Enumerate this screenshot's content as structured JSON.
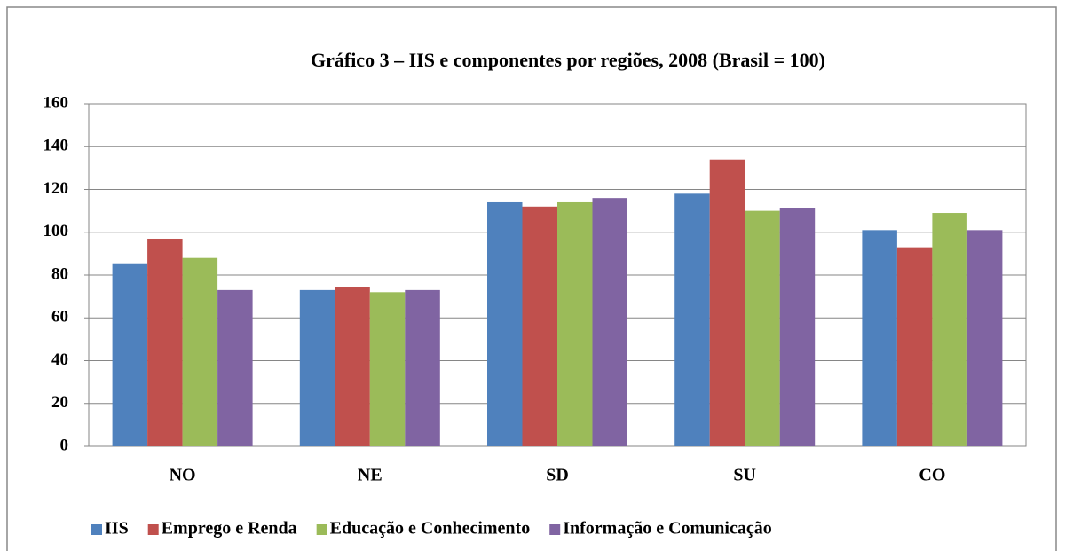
{
  "chart_data": {
    "type": "bar",
    "title": "Gráfico 3 – IIS e componentes por regiões, 2008 (Brasil = 100)",
    "categories": [
      "NO",
      "NE",
      "SD",
      "SU",
      "CO"
    ],
    "series": [
      {
        "name": "IIS",
        "color": "#4f81bd",
        "values": [
          85.5,
          73,
          114,
          118,
          101
        ]
      },
      {
        "name": "Emprego e Renda",
        "color": "#c0504d",
        "values": [
          97,
          74.5,
          112,
          134,
          93
        ]
      },
      {
        "name": "Educação e Conhecimento",
        "color": "#9bbb59",
        "values": [
          88,
          72,
          114,
          110,
          109
        ]
      },
      {
        "name": "Informação e Comunicação",
        "color": "#8064a2",
        "values": [
          73,
          73,
          116,
          111.5,
          101
        ]
      }
    ],
    "ylim": [
      0,
      160
    ],
    "yticks": [
      0,
      20,
      40,
      60,
      80,
      100,
      120,
      140,
      160
    ],
    "grid": true,
    "legend": "bottom"
  }
}
